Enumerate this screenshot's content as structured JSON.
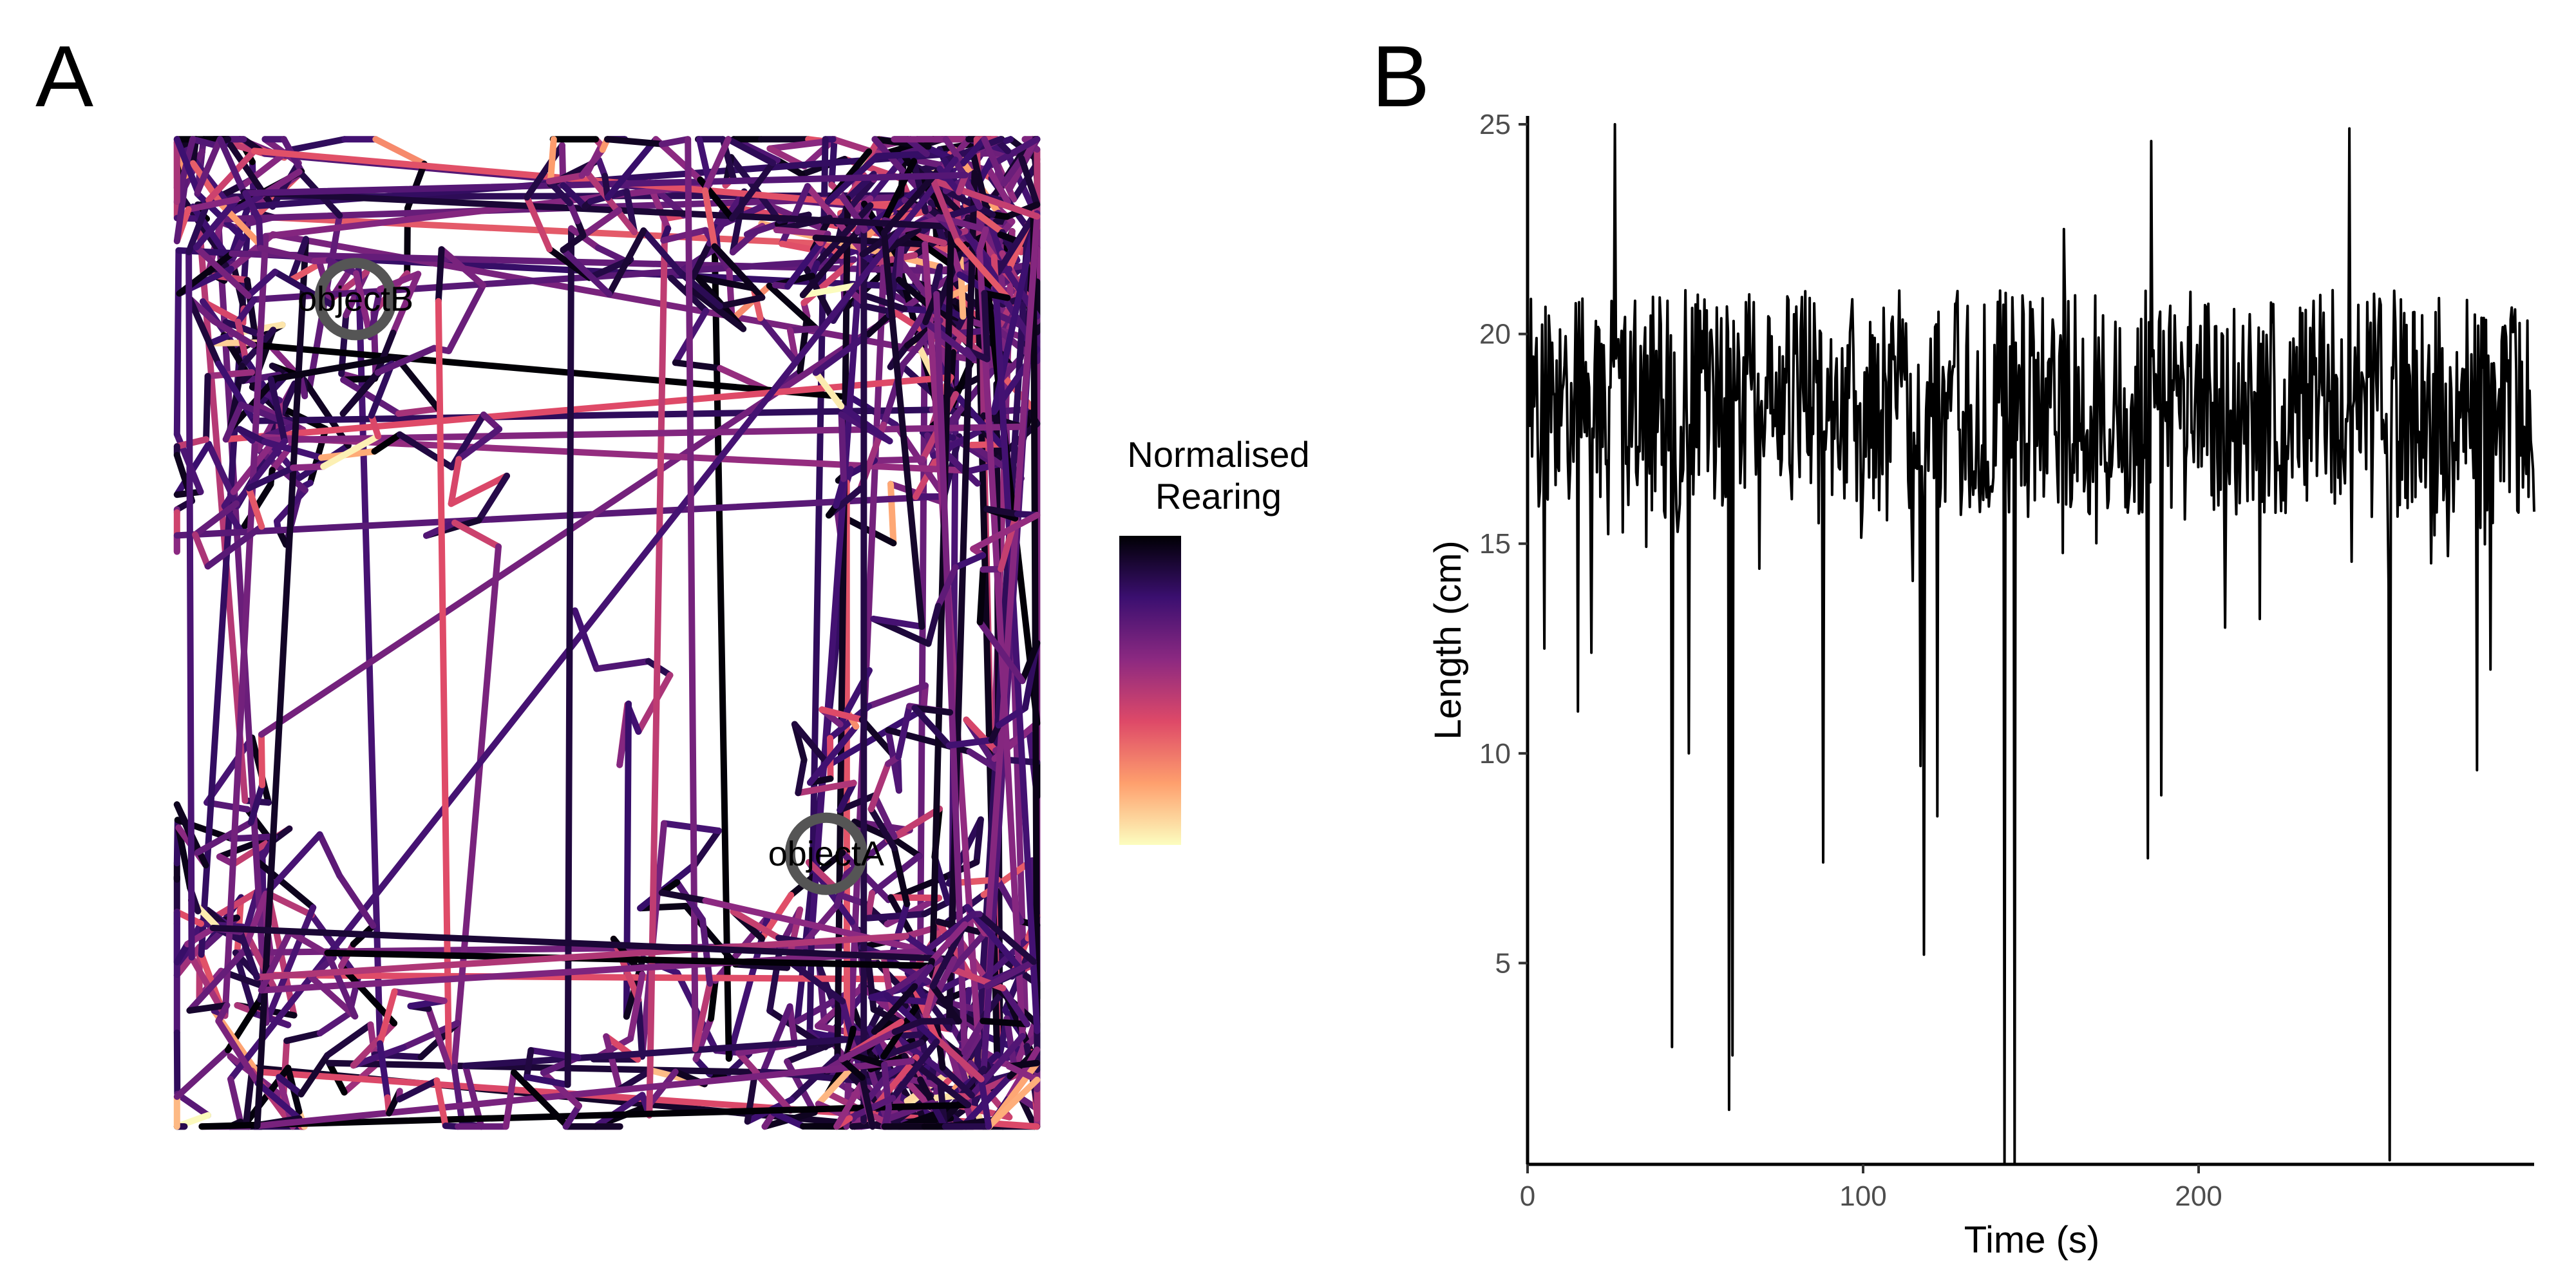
{
  "panels": {
    "a_label": "A",
    "b_label": "B"
  },
  "chart_data": [
    {
      "panel": "A",
      "type": "line",
      "description_kind": "trajectory path colored by normalised rearing",
      "colorbar": {
        "title_line1": "Normalised",
        "title_line2": "Rearing",
        "colormap": "magma",
        "stops": [
          "#fcfdbf",
          "#fe9f6d",
          "#de4968",
          "#8c2981",
          "#3b0f70",
          "#000004"
        ],
        "range": [
          0,
          1
        ]
      },
      "objects": [
        {
          "name": "objectB",
          "x": 0.2,
          "y": 0.86,
          "ring_color": "#555555"
        },
        {
          "name": "objectA",
          "x": 0.78,
          "y": 0.27,
          "ring_color": "#555555"
        }
      ],
      "arena_path_seed": 137,
      "grid": false,
      "axes_visible": false
    },
    {
      "panel": "B",
      "type": "line",
      "xlabel": "Time (s)",
      "ylabel": "Length (cm)",
      "xlim": [
        0,
        300
      ],
      "ylim": [
        0.2,
        25.2
      ],
      "xticks": [
        "0",
        "100",
        "200"
      ],
      "xtick_values": [
        0,
        100,
        200
      ],
      "yticks": [
        "5",
        "10",
        "15",
        "20",
        "25"
      ],
      "ytick_values": [
        5,
        10,
        15,
        20,
        25
      ],
      "grid": false,
      "line_color": "#000000",
      "series": [
        {
          "baseline_mean": 18.3,
          "baseline_range": [
            14.0,
            22.0
          ],
          "sample_count": 900,
          "spikes": [
            {
              "t": 5,
              "v": 12.5
            },
            {
              "t": 15,
              "v": 11.0
            },
            {
              "t": 19,
              "v": 12.4
            },
            {
              "t": 26,
              "v": 25.0
            },
            {
              "t": 43,
              "v": 3.0
            },
            {
              "t": 48,
              "v": 10.0
            },
            {
              "t": 60,
              "v": 1.5
            },
            {
              "t": 61,
              "v": 2.8
            },
            {
              "t": 88,
              "v": 7.4
            },
            {
              "t": 117,
              "v": 9.7
            },
            {
              "t": 118,
              "v": 5.2
            },
            {
              "t": 122,
              "v": 8.5
            },
            {
              "t": 142,
              "v": 0.2
            },
            {
              "t": 145,
              "v": 0.2
            },
            {
              "t": 160,
              "v": 22.5
            },
            {
              "t": 185,
              "v": 7.5
            },
            {
              "t": 186,
              "v": 24.6
            },
            {
              "t": 189,
              "v": 9.0
            },
            {
              "t": 245,
              "v": 24.9
            },
            {
              "t": 257,
              "v": 0.3
            },
            {
              "t": 283,
              "v": 9.6
            },
            {
              "t": 287,
              "v": 12.0
            }
          ]
        }
      ]
    }
  ]
}
